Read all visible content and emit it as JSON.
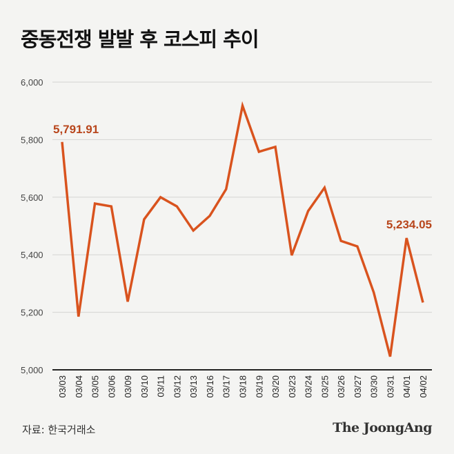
{
  "title": "중동전쟁 발발 후 코스피 추이",
  "source": "자료: 한국거래소",
  "logo": "The JoongAng",
  "colors": {
    "line": "#d9531e",
    "annotation": "#b8461c",
    "grid": "#d4d4d2",
    "background": "#f4f4f2"
  },
  "chart_data": {
    "type": "line",
    "title": "중동전쟁 발발 후 코스피 추이",
    "xlabel": "",
    "ylabel": "",
    "ylim": [
      5000,
      6000
    ],
    "yticks": [
      5000,
      5200,
      5400,
      5600,
      5800,
      6000
    ],
    "ytick_labels": [
      "5,000",
      "5,200",
      "5,400",
      "5,600",
      "5,800",
      "6,000"
    ],
    "grid": true,
    "categories": [
      "03/03",
      "03/04",
      "03/05",
      "03/06",
      "03/09",
      "03/10",
      "03/11",
      "03/12",
      "03/13",
      "03/16",
      "03/17",
      "03/18",
      "03/19",
      "03/20",
      "03/23",
      "03/24",
      "03/25",
      "03/26",
      "03/27",
      "03/30",
      "03/31",
      "04/01",
      "04/02"
    ],
    "values": [
      5791.91,
      5185,
      5578,
      5568,
      5237,
      5523,
      5600,
      5568,
      5484,
      5535,
      5628,
      5918,
      5758,
      5775,
      5398,
      5552,
      5633,
      5448,
      5429,
      5269,
      5046,
      5458,
      5234.05
    ],
    "annotations": [
      {
        "index": 0,
        "text": "5,791.91"
      },
      {
        "index": 22,
        "text": "5,234.05"
      }
    ]
  }
}
